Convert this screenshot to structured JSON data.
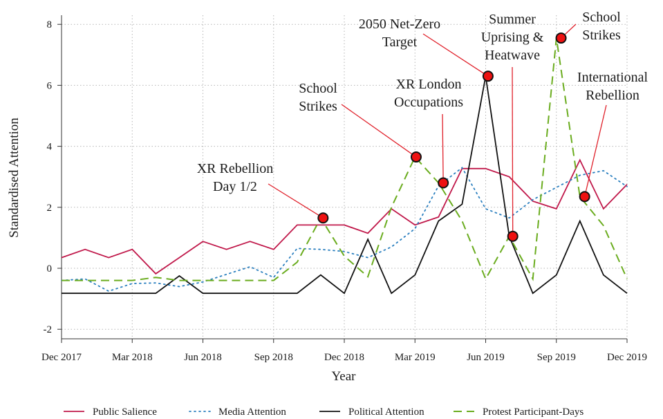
{
  "chart_data": {
    "type": "line",
    "xlabel": "Year",
    "ylabel": "Standardised Attention",
    "ylim": [
      -2.2,
      8.2
    ],
    "yticks": [
      -2,
      0,
      2,
      4,
      6,
      8
    ],
    "xticks": [
      {
        "month": 0,
        "label": "Dec 2017"
      },
      {
        "month": 3,
        "label": "Mar 2018"
      },
      {
        "month": 6,
        "label": "Jun 2018"
      },
      {
        "month": 9,
        "label": "Sep 2018"
      },
      {
        "month": 12,
        "label": "Dec 2018"
      },
      {
        "month": 15,
        "label": "Mar 2019"
      },
      {
        "month": 18,
        "label": "Jun 2019"
      },
      {
        "month": 21,
        "label": "Sep 2019"
      },
      {
        "month": 24,
        "label": "Dec 2019"
      }
    ],
    "x": [
      0,
      1,
      2,
      3,
      4,
      5,
      6,
      7,
      8,
      9,
      10,
      11,
      12,
      13,
      14,
      15,
      16,
      17,
      18,
      19,
      20,
      21,
      22,
      23,
      24
    ],
    "grid": true,
    "legend_position": "bottom",
    "series": [
      {
        "name": "Public Salience",
        "color": "#c0184a",
        "dash": "solid",
        "values": [
          0.35,
          0.62,
          0.35,
          0.62,
          -0.18,
          0.35,
          0.88,
          0.62,
          0.88,
          0.62,
          1.42,
          1.42,
          1.42,
          1.15,
          1.95,
          1.42,
          1.68,
          3.27,
          3.27,
          3.0,
          2.2,
          1.95,
          3.55,
          1.95,
          2.75
        ]
      },
      {
        "name": "Media Attention",
        "color": "#2a7fbf",
        "dash": "dotted",
        "values": [
          -0.4,
          -0.35,
          -0.75,
          -0.5,
          -0.48,
          -0.6,
          -0.45,
          -0.2,
          0.05,
          -0.3,
          0.65,
          0.62,
          0.55,
          0.35,
          0.7,
          1.3,
          2.7,
          3.3,
          1.95,
          1.65,
          2.25,
          2.65,
          3.05,
          3.2,
          2.68
        ]
      },
      {
        "name": "Political Attention",
        "color": "#111111",
        "dash": "solid",
        "values": [
          -0.82,
          -0.82,
          -0.82,
          -0.82,
          -0.82,
          -0.25,
          -0.82,
          -0.82,
          -0.82,
          -0.82,
          -0.82,
          -0.22,
          -0.82,
          0.95,
          -0.82,
          -0.22,
          1.55,
          2.1,
          6.3,
          1.05,
          -0.82,
          -0.22,
          1.55,
          -0.22,
          -0.82
        ]
      },
      {
        "name": "Protest Participant-Days",
        "color": "#6aac1e",
        "dash": "dashed",
        "values": [
          -0.4,
          -0.4,
          -0.4,
          -0.4,
          -0.3,
          -0.4,
          -0.4,
          -0.4,
          -0.4,
          -0.4,
          0.2,
          1.65,
          0.4,
          -0.28,
          2.0,
          3.65,
          2.8,
          1.55,
          -0.35,
          1.05,
          -0.35,
          7.55,
          2.35,
          1.4,
          -0.35
        ]
      }
    ],
    "events": [
      {
        "month": 11.1,
        "y": 1.65,
        "label_lines": [
          "XR Rebellion",
          "Day 1/2"
        ],
        "anchor": "middle"
      },
      {
        "month": 15.05,
        "y": 3.65,
        "label_lines": [
          "School",
          "Strikes"
        ],
        "anchor": "middle"
      },
      {
        "month": 16.2,
        "y": 2.8,
        "label_lines": [
          "XR London",
          "Occupations"
        ],
        "anchor": "middle"
      },
      {
        "month": 18.1,
        "y": 6.3,
        "label_lines": [
          "2050 Net-Zero",
          "Target"
        ],
        "anchor": "middle"
      },
      {
        "month": 19.15,
        "y": 1.05,
        "label_lines": [
          "Summer",
          "Uprising &",
          "Heatwave"
        ],
        "anchor": "middle"
      },
      {
        "month": 21.2,
        "y": 7.55,
        "label_lines": [
          "School",
          "Strikes"
        ],
        "anchor": "middle"
      },
      {
        "month": 22.2,
        "y": 2.35,
        "label_lines": [
          "International",
          "Rebellion"
        ],
        "anchor": "middle"
      }
    ]
  }
}
